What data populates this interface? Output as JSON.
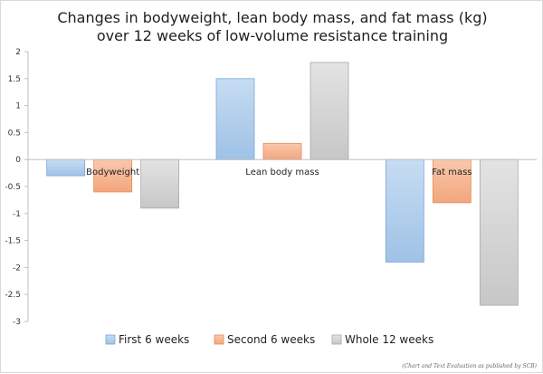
{
  "chart_data": {
    "type": "bar",
    "title": "Changes in bodyweight, lean body mass, and fat mass (kg)",
    "subtitle": "over 12 weeks of low-volume resistance training",
    "xlabel": "",
    "ylabel": "",
    "categories": [
      "Bodyweight",
      "Lean body mass",
      "Fat mass"
    ],
    "series": [
      {
        "name": "First 6 weeks",
        "values": [
          -0.3,
          1.5,
          -1.9
        ],
        "color_top": "#c6dcf2",
        "color_bottom": "#9fc2e7",
        "stroke": "#7aa6d6"
      },
      {
        "name": "Second 6 weeks",
        "values": [
          -0.6,
          0.3,
          -0.8
        ],
        "color_top": "#f9c8ad",
        "color_bottom": "#f3a67d",
        "stroke": "#e58c5a"
      },
      {
        "name": "Whole 12 weeks",
        "values": [
          -0.9,
          1.8,
          -2.7
        ],
        "color_top": "#e3e3e3",
        "color_bottom": "#c7c7c7",
        "stroke": "#a9a9a9"
      }
    ],
    "ylim": [
      -3,
      2
    ],
    "yticks": [
      2,
      1.5,
      1,
      0.5,
      0,
      -0.5,
      -1,
      -1.5,
      -2,
      -2.5,
      -3
    ],
    "grid": false,
    "legend_position": "bottom",
    "footnote": "(Chart and Text Evaluation as published by SCB)"
  }
}
